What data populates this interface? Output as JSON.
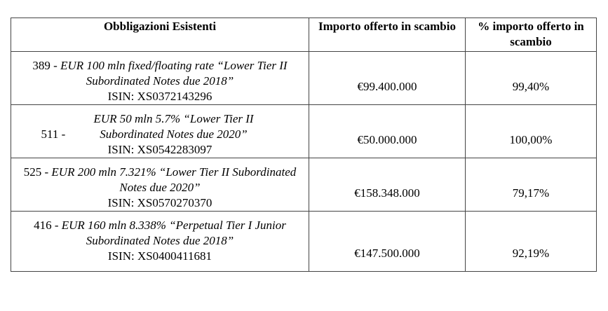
{
  "headers": [
    "Obbligazioni Esistenti",
    "Importo offerto in scambio",
    "% importo offerto in scambio"
  ],
  "rows": [
    {
      "code": "389",
      "title": "EUR 100 mln fixed/floating rate “Lower Tier II Subordinated Notes due 2018”",
      "isin": "ISIN: XS0372143296",
      "amount": "€99.400.000",
      "percent": "99,40%"
    },
    {
      "code": "511",
      "title": "EUR 50 mln 5.7% “Lower Tier II Subordinated Notes due 2020”",
      "isin": "ISIN: XS0542283097",
      "amount": "€50.000.000",
      "percent": "100,00%"
    },
    {
      "code": "525",
      "title": "EUR 200 mln 7.321% “Lower Tier II Subordinated Notes due 2020”",
      "isin": "ISIN: XS0570270370",
      "amount": "€158.348.000",
      "percent": "79,17%"
    },
    {
      "code": "416",
      "title": "EUR 160 mln 8.338% “Perpetual Tier I Junior Subordinated Notes due 2018”",
      "isin": "ISIN: XS0400411681",
      "amount": "€147.500.000",
      "percent": "92,19%"
    }
  ],
  "separator": " - "
}
